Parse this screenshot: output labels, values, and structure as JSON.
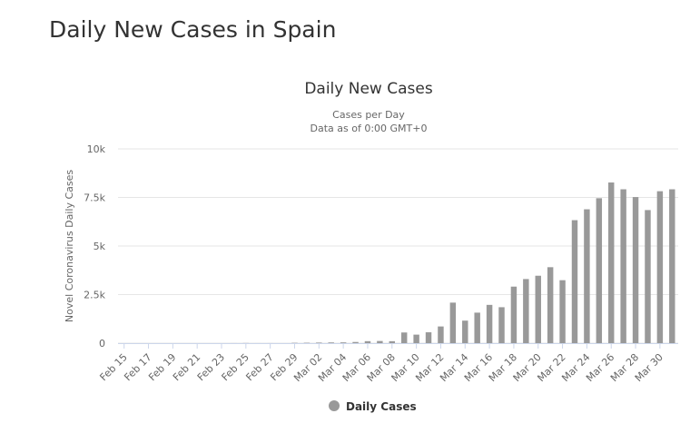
{
  "page": {
    "title": "Daily New Cases in Spain"
  },
  "chart_data": {
    "type": "bar",
    "title": "Daily New Cases",
    "subtitle_line1": "Cases per Day",
    "subtitle_line2": "Data as of 0:00 GMT+0",
    "ylabel": "Novel Coronavirus Daily Cases",
    "xlabel": "",
    "ylim": [
      0,
      10000
    ],
    "yticks": [
      {
        "value": 0,
        "label": "0"
      },
      {
        "value": 2500,
        "label": "2.5k"
      },
      {
        "value": 5000,
        "label": "5k"
      },
      {
        "value": 7500,
        "label": "7.5k"
      },
      {
        "value": 10000,
        "label": "10k"
      }
    ],
    "grid": true,
    "legend_position": "bottom-center",
    "series_color": "#999999",
    "categories": [
      "Feb 15",
      "Feb 16",
      "Feb 17",
      "Feb 18",
      "Feb 19",
      "Feb 20",
      "Feb 21",
      "Feb 22",
      "Feb 23",
      "Feb 24",
      "Feb 25",
      "Feb 26",
      "Feb 27",
      "Feb 28",
      "Feb 29",
      "Mar 01",
      "Mar 02",
      "Mar 03",
      "Mar 04",
      "Mar 05",
      "Mar 06",
      "Mar 07",
      "Mar 08",
      "Mar 09",
      "Mar 10",
      "Mar 11",
      "Mar 12",
      "Mar 13",
      "Mar 14",
      "Mar 15",
      "Mar 16",
      "Mar 17",
      "Mar 18",
      "Mar 19",
      "Mar 20",
      "Mar 21",
      "Mar 22",
      "Mar 23",
      "Mar 24",
      "Mar 25",
      "Mar 26",
      "Mar 27",
      "Mar 28",
      "Mar 29",
      "Mar 30",
      "Mar 31"
    ],
    "tick_labels": [
      "Feb 15",
      "Feb 17",
      "Feb 19",
      "Feb 21",
      "Feb 23",
      "Feb 25",
      "Feb 27",
      "Feb 29",
      "Mar 02",
      "Mar 04",
      "Mar 06",
      "Mar 08",
      "Mar 10",
      "Mar 12",
      "Mar 14",
      "Mar 16",
      "Mar 18",
      "Mar 20",
      "Mar 22",
      "Mar 24",
      "Mar 26",
      "Mar 28",
      "Mar 30"
    ],
    "series": [
      {
        "name": "Daily Cases",
        "values": [
          0,
          0,
          0,
          0,
          0,
          0,
          0,
          0,
          0,
          2,
          6,
          1,
          2,
          0,
          17,
          21,
          30,
          37,
          40,
          60,
          101,
          110,
          100,
          549,
          438,
          559,
          859,
          2086,
          1159,
          1570,
          1970,
          1850,
          2910,
          3300,
          3470,
          3910,
          3240,
          6330,
          6890,
          7460,
          8270,
          7920,
          7520,
          6850,
          7820,
          7920
        ]
      }
    ]
  }
}
